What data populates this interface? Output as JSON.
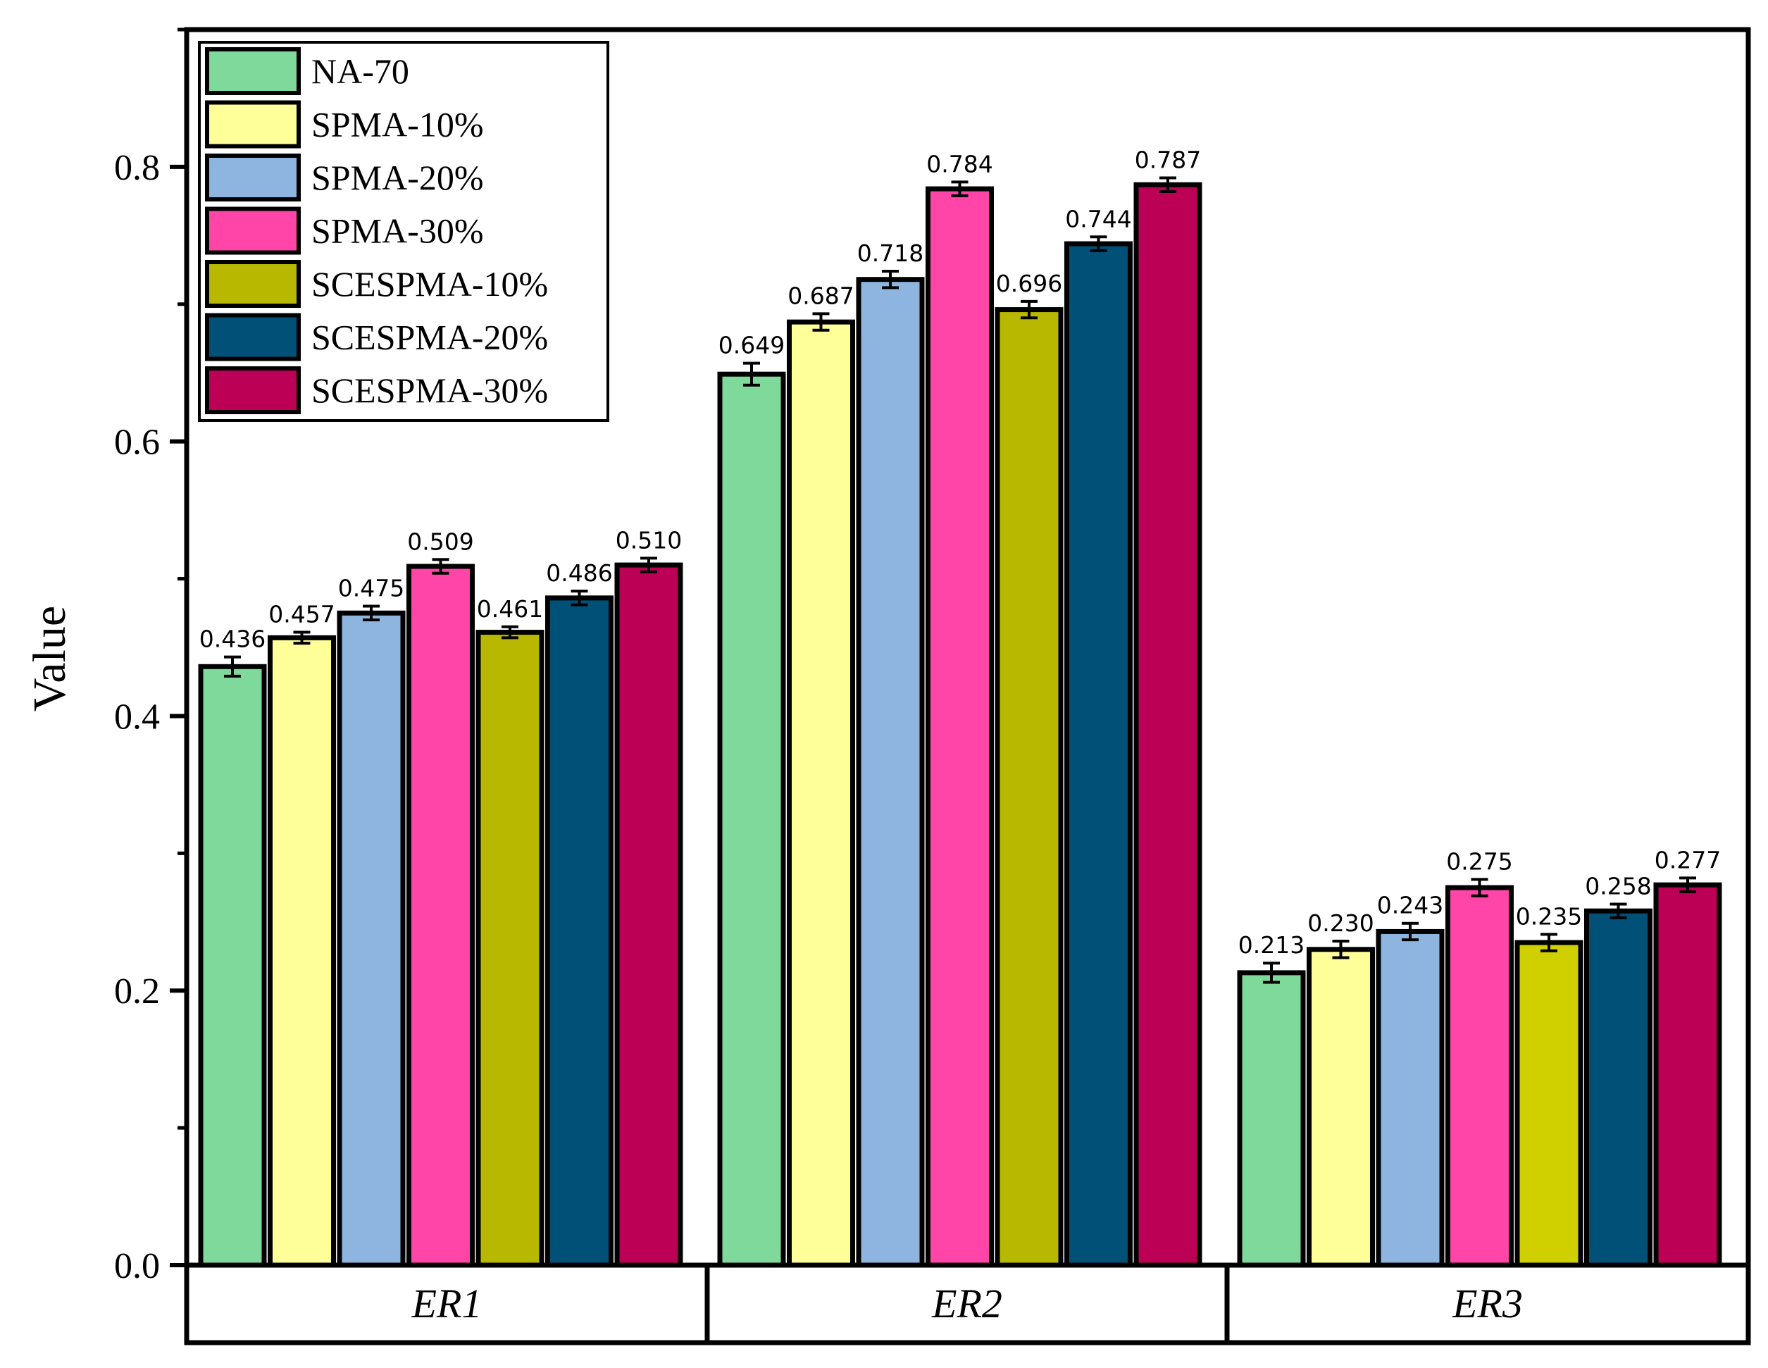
{
  "chart_data": {
    "type": "bar",
    "title": "",
    "xlabel": "",
    "ylabel": "Value",
    "ylim": [
      0,
      0.9
    ],
    "yticks": [
      "0.0",
      "0.2",
      "0.4",
      "0.6",
      "0.8"
    ],
    "ytick_values": [
      0.0,
      0.2,
      0.4,
      0.6,
      0.8
    ],
    "categories": [
      "ER1",
      "ER2",
      "ER3"
    ],
    "legend_position": "top-left",
    "series": [
      {
        "name": "NA-70",
        "color": "#7fd99a",
        "values": [
          0.436,
          0.649,
          0.213
        ],
        "labels": [
          "0.436",
          "0.649",
          "0.213"
        ],
        "errors": [
          0.007,
          0.008,
          0.007
        ]
      },
      {
        "name": "SPMA-10%",
        "color": "#ffff99",
        "values": [
          0.457,
          0.687,
          0.23
        ],
        "labels": [
          "0.457",
          "0.687",
          "0.230"
        ],
        "errors": [
          0.004,
          0.006,
          0.006
        ]
      },
      {
        "name": "SPMA-20%",
        "color": "#8db5e0",
        "values": [
          0.475,
          0.718,
          0.243
        ],
        "labels": [
          "0.475",
          "0.718",
          "0.243"
        ],
        "errors": [
          0.005,
          0.006,
          0.006
        ]
      },
      {
        "name": "SPMA-30%",
        "color": "#ff45a8",
        "values": [
          0.509,
          0.784,
          0.275
        ],
        "labels": [
          "0.509",
          "0.784",
          "0.275"
        ],
        "errors": [
          0.005,
          0.005,
          0.006
        ]
      },
      {
        "name": "SCESPMA-10%",
        "color": "#b9b800",
        "values": [
          0.461,
          0.696,
          0.235
        ],
        "labels": [
          "0.461",
          "0.696",
          "0.235"
        ],
        "errors": [
          0.004,
          0.006,
          0.006
        ]
      },
      {
        "name": "SCESPMA-20%",
        "color": "#005078",
        "values": [
          0.486,
          0.744,
          0.258
        ],
        "labels": [
          "0.486",
          "0.744",
          "0.258"
        ],
        "errors": [
          0.005,
          0.005,
          0.005
        ]
      },
      {
        "name": "SCESPMA-30%",
        "color": "#bc0055",
        "values": [
          0.51,
          0.787,
          0.277
        ],
        "labels": [
          "0.510",
          "0.787",
          "0.277"
        ],
        "errors": [
          0.005,
          0.005,
          0.005
        ]
      }
    ],
    "er3_series_colors": [
      "#7fd99a",
      "#ffff99",
      "#8db5e0",
      "#ff45a8",
      "#d0d000",
      "#005078",
      "#bc0055"
    ]
  }
}
